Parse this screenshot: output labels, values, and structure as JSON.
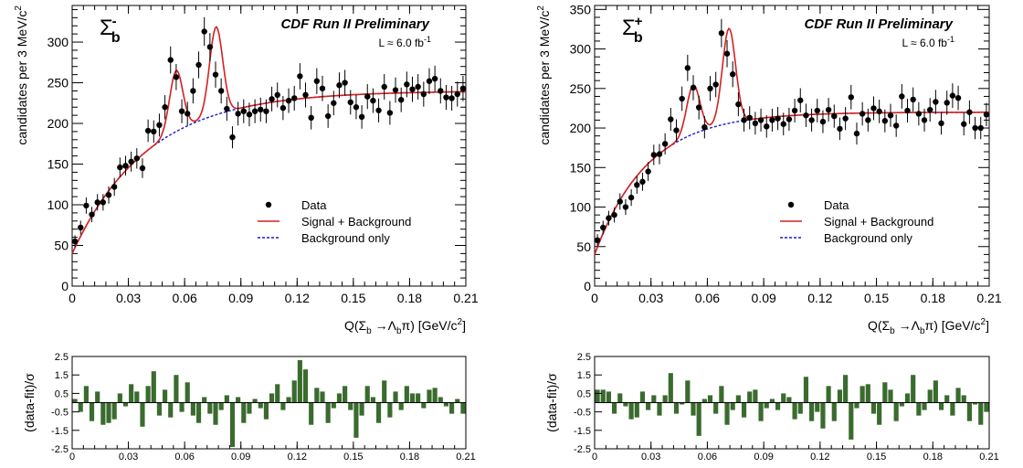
{
  "chart_data": [
    {
      "type": "scatter",
      "panel": "Sigma_b- main",
      "particle_label": "Σb-",
      "experiment_label": "CDF Run II Preliminary",
      "lumi_label": "L ≈ 6.0 fb-1",
      "ylabel": "candidates per 3 MeV/c2",
      "xlabel": "Q(Σb → Λbπ) [GeV/c2]",
      "xlim": [
        0,
        0.21
      ],
      "ylim": [
        0,
        345
      ],
      "x_ticks": [
        "0",
        "0.03",
        "0.06",
        "0.09",
        "0.12",
        "0.15",
        "0.18",
        "0.21"
      ],
      "y_ticks": [
        "0",
        "50",
        "100",
        "150",
        "200",
        "250",
        "300"
      ],
      "legend": [
        "Data",
        "Signal + Background",
        "Background only"
      ],
      "legend_position": "center-right",
      "series": [
        {
          "name": "Data",
          "kind": "points_with_errors",
          "x": [
            0.0015,
            0.0045,
            0.0075,
            0.0105,
            0.0135,
            0.0165,
            0.0195,
            0.0225,
            0.0255,
            0.0285,
            0.0315,
            0.0345,
            0.0375,
            0.0405,
            0.0435,
            0.0465,
            0.0495,
            0.0525,
            0.0555,
            0.0585,
            0.0615,
            0.0645,
            0.0675,
            0.0705,
            0.0735,
            0.0765,
            0.0795,
            0.0825,
            0.0855,
            0.0885,
            0.0915,
            0.0945,
            0.0975,
            0.1005,
            0.1035,
            0.1065,
            0.1095,
            0.1125,
            0.1155,
            0.1185,
            0.1215,
            0.1245,
            0.1275,
            0.1305,
            0.1335,
            0.1365,
            0.1395,
            0.1425,
            0.1455,
            0.1485,
            0.1515,
            0.1545,
            0.1575,
            0.1605,
            0.1635,
            0.1665,
            0.1695,
            0.1725,
            0.1755,
            0.1785,
            0.1815,
            0.1845,
            0.1875,
            0.1905,
            0.1935,
            0.1965,
            0.1995,
            0.2025,
            0.2055,
            0.2085
          ],
          "y": [
            55,
            72,
            99,
            88,
            103,
            103,
            112,
            122,
            146,
            148,
            153,
            157,
            145,
            191,
            190,
            198,
            220,
            278,
            257,
            215,
            212,
            240,
            272,
            313,
            294,
            260,
            240,
            218,
            183,
            212,
            215,
            211,
            215,
            217,
            215,
            230,
            235,
            219,
            228,
            231,
            258,
            235,
            207,
            252,
            243,
            209,
            225,
            247,
            250,
            226,
            220,
            208,
            233,
            228,
            216,
            245,
            213,
            241,
            229,
            248,
            242,
            245,
            236,
            252,
            255,
            240,
            232,
            231,
            236,
            243
          ]
        },
        {
          "name": "Signal + Background",
          "kind": "line",
          "color": "#d42020"
        },
        {
          "name": "Background only",
          "kind": "dashed_line",
          "color": "#1a1acc"
        }
      ]
    },
    {
      "type": "bar",
      "panel": "Sigma_b- residuals",
      "ylabel": "(data-fit)/σ",
      "xlim": [
        0,
        0.21
      ],
      "ylim": [
        -2.5,
        2.5
      ],
      "x_ticks": [
        "0",
        "0.03",
        "0.06",
        "0.09",
        "0.12",
        "0.15",
        "0.18",
        "0.21"
      ],
      "y_ticks": [
        "-2.5",
        "-1.5",
        "-0.5",
        "0.5",
        "1.5",
        "2.5"
      ],
      "values": [
        0.2,
        -0.5,
        0.9,
        -1.0,
        0.6,
        -1.2,
        -1.1,
        -0.9,
        0.5,
        -0.2,
        1.0,
        0.6,
        -1.3,
        0.9,
        1.7,
        -0.7,
        0.7,
        -0.8,
        1.5,
        -0.5,
        1.1,
        -0.7,
        -1.1,
        0.3,
        -0.6,
        -1.2,
        -0.4,
        0.4,
        -2.4,
        0.3,
        -1.1,
        -0.6,
        0.2,
        -0.3,
        -0.9,
        0.5,
        1.0,
        -0.4,
        0.3,
        1.2,
        2.3,
        1.8,
        -1.2,
        0.8,
        0.6,
        -1.1,
        -0.3,
        0.5,
        0.9,
        -0.4,
        -1.9,
        -0.7,
        0.9,
        0.3,
        -1.1,
        1.2,
        -0.8,
        0.6,
        -0.4,
        0.9,
        0.5,
        0.5,
        -0.3,
        0.7,
        0.8,
        0.3,
        -0.2,
        -0.6,
        0.2,
        -0.6
      ],
      "color": "#3a6b2e"
    },
    {
      "type": "scatter",
      "panel": "Sigma_b+ main",
      "particle_label": "Σb+",
      "experiment_label": "CDF Run II Preliminary",
      "lumi_label": "L ≈ 6.0 fb-1",
      "ylabel": "candidates per 3 MeV/c2",
      "xlabel": "Q(Σb → Λbπ) [GeV/c2]",
      "xlim": [
        0,
        0.21
      ],
      "ylim": [
        0,
        355
      ],
      "x_ticks": [
        "0",
        "0.03",
        "0.06",
        "0.09",
        "0.12",
        "0.15",
        "0.18",
        "0.21"
      ],
      "y_ticks": [
        "0",
        "50",
        "100",
        "150",
        "200",
        "250",
        "300",
        "350"
      ],
      "legend": [
        "Data",
        "Signal + Background",
        "Background only"
      ],
      "legend_position": "center-right",
      "series": [
        {
          "name": "Data",
          "kind": "points_with_errors",
          "x": [
            0.0015,
            0.0045,
            0.0075,
            0.0105,
            0.0135,
            0.0165,
            0.0195,
            0.0225,
            0.0255,
            0.0285,
            0.0315,
            0.0345,
            0.0375,
            0.0405,
            0.0435,
            0.0465,
            0.0495,
            0.0525,
            0.0555,
            0.0585,
            0.0615,
            0.0645,
            0.0675,
            0.0705,
            0.0735,
            0.0765,
            0.0795,
            0.0825,
            0.0855,
            0.0885,
            0.0915,
            0.0945,
            0.0975,
            0.1005,
            0.1035,
            0.1065,
            0.1095,
            0.1125,
            0.1155,
            0.1185,
            0.1215,
            0.1245,
            0.1275,
            0.1305,
            0.1335,
            0.1365,
            0.1395,
            0.1425,
            0.1455,
            0.1485,
            0.1515,
            0.1545,
            0.1575,
            0.1605,
            0.1635,
            0.1665,
            0.1695,
            0.1725,
            0.1755,
            0.1785,
            0.1815,
            0.1845,
            0.1875,
            0.1905,
            0.1935,
            0.1965,
            0.1995,
            0.2025,
            0.2055,
            0.2085
          ],
          "y": [
            58,
            74,
            86,
            90,
            107,
            100,
            112,
            128,
            132,
            145,
            166,
            167,
            180,
            211,
            197,
            237,
            276,
            251,
            226,
            201,
            250,
            255,
            320,
            294,
            268,
            230,
            210,
            213,
            206,
            210,
            202,
            210,
            212,
            205,
            211,
            222,
            235,
            216,
            210,
            222,
            208,
            223,
            215,
            199,
            212,
            239,
            193,
            218,
            210,
            225,
            221,
            209,
            216,
            203,
            240,
            222,
            236,
            218,
            210,
            223,
            233,
            206,
            232,
            241,
            238,
            205,
            220,
            200,
            200,
            217
          ]
        },
        {
          "name": "Signal + Background",
          "kind": "line",
          "color": "#d42020"
        },
        {
          "name": "Background only",
          "kind": "dashed_line",
          "color": "#1a1acc"
        }
      ]
    },
    {
      "type": "bar",
      "panel": "Sigma_b+ residuals",
      "ylabel": "(data-fit)/σ",
      "xlim": [
        0,
        0.21
      ],
      "ylim": [
        -2.5,
        2.5
      ],
      "x_ticks": [
        "0",
        "0.03",
        "0.06",
        "0.09",
        "0.12",
        "0.15",
        "0.18",
        "0.21"
      ],
      "y_ticks": [
        "-2.5",
        "-1.5",
        "-0.5",
        "0.5",
        "1.5",
        "2.5"
      ],
      "values": [
        0.7,
        0.7,
        0.6,
        -0.6,
        0.5,
        -0.2,
        -0.9,
        -0.8,
        0.6,
        -0.4,
        0.4,
        -0.7,
        0.4,
        1.6,
        -0.6,
        -0.1,
        1.2,
        -0.7,
        -1.8,
        0.2,
        0.4,
        -0.6,
        0.9,
        -1.2,
        -0.4,
        0.4,
        -0.8,
        0.6,
        0.7,
        -1.0,
        -0.3,
        0.2,
        -0.4,
        0.5,
        0.3,
        -0.9,
        -0.6,
        1.4,
        -1.0,
        -0.5,
        -1.4,
        0.9,
        -1.0,
        0.7,
        1.5,
        -2.0,
        -0.3,
        0.9,
        1.0,
        -0.6,
        -1.2,
        1.1,
        0.7,
        -1.0,
        -0.2,
        0.5,
        1.5,
        -0.7,
        -0.4,
        0.7,
        1.2,
        -0.4,
        0.4,
        -0.7,
        0.8,
        0.4,
        -1.0,
        -0.1,
        -1.2,
        -0.5
      ],
      "color": "#3a6b2e"
    }
  ]
}
